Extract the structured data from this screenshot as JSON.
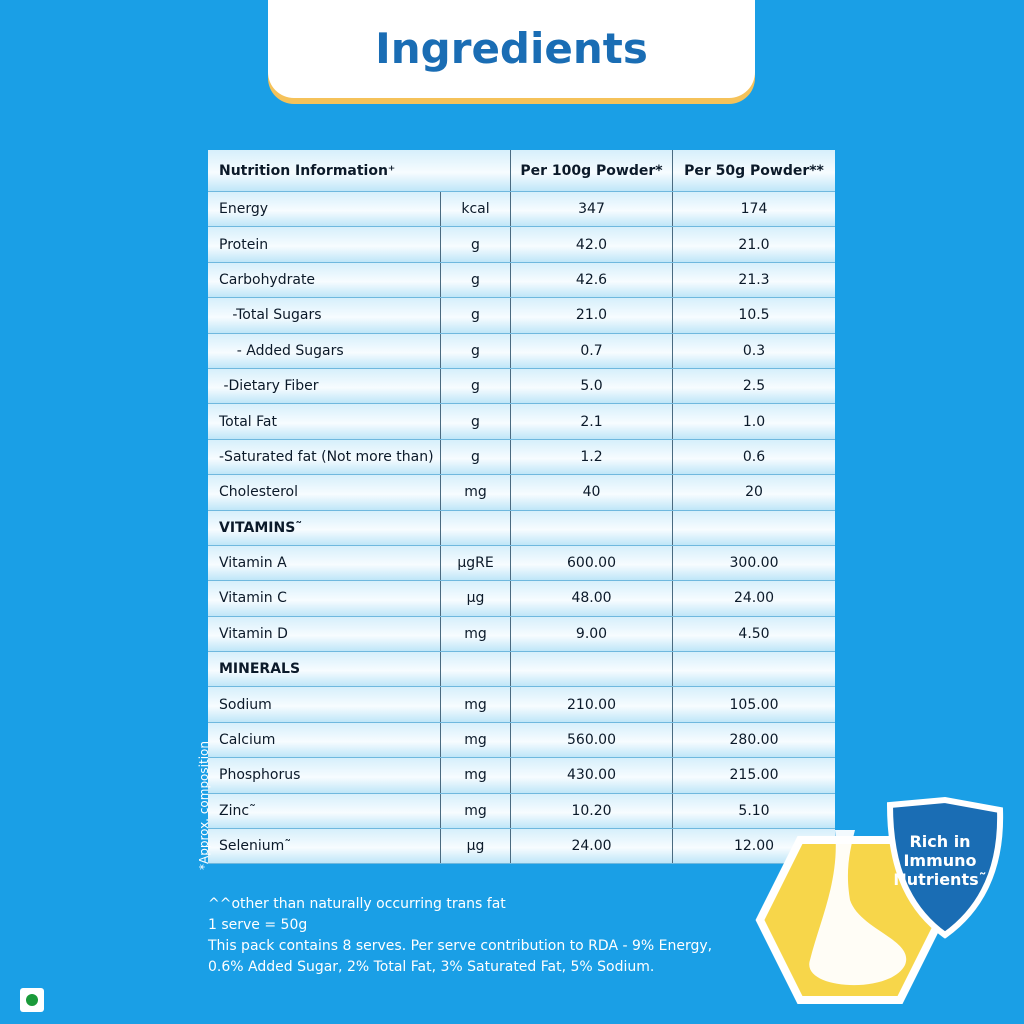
{
  "header": {
    "title": "Ingredients"
  },
  "table": {
    "columns": [
      "Nutrition Information⁺",
      "Per 100g Powder*",
      "Per 50g Powder**"
    ],
    "rows": [
      [
        "Energy",
        "kcal",
        "347",
        "174"
      ],
      [
        "Protein",
        "g",
        "42.0",
        "21.0"
      ],
      [
        "Carbohydrate",
        "g",
        "42.6",
        "21.3"
      ],
      [
        "   -Total Sugars",
        "g",
        "21.0",
        "10.5"
      ],
      [
        "    - Added Sugars",
        "g",
        "0.7",
        "0.3"
      ],
      [
        " -Dietary Fiber",
        "g",
        "5.0",
        "2.5"
      ],
      [
        "Total Fat",
        "g",
        "2.1",
        "1.0"
      ],
      [
        "-Saturated fat (Not more than)",
        "g",
        "1.2",
        "0.6"
      ],
      [
        "Cholesterol",
        "mg",
        "40",
        "20"
      ],
      [
        "VITAMINS˜"
      ],
      [
        "Vitamin A",
        "μgRE",
        "600.00",
        "300.00"
      ],
      [
        "Vitamin C",
        "μg",
        "48.00",
        "24.00"
      ],
      [
        "Vitamin D",
        "mg",
        "9.00",
        "4.50"
      ],
      [
        "MINERALS"
      ],
      [
        "Sodium",
        "mg",
        "210.00",
        "105.00"
      ],
      [
        "Calcium",
        "mg",
        "560.00",
        "280.00"
      ],
      [
        "Phosphorus",
        "mg",
        "430.00",
        "215.00"
      ],
      [
        "Zinc˜",
        "mg",
        "10.20",
        "5.10"
      ],
      [
        "Selenium˜",
        "μg",
        "24.00",
        "12.00"
      ]
    ]
  },
  "side_note": "*Approx. composition",
  "notes": [
    "^^other than naturally occurring trans fat",
    "1 serve = 50g",
    "This pack contains 8 serves. Per serve contribution to RDA - 9% Energy,",
    "0.6% Added Sugar, 2% Total Fat, 3% Saturated Fat, 5% Sodium."
  ],
  "badge": [
    "Rich in",
    "Immuno",
    "Nutrients˜"
  ]
}
